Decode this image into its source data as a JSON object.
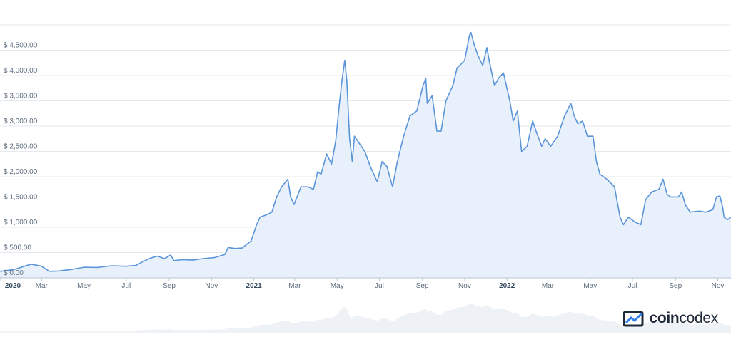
{
  "chart_data": {
    "type": "area",
    "title": "",
    "xlabel": "",
    "ylabel": "",
    "y_tick_labels": [
      "$ 0.00",
      "$ 500.00",
      "$ 1,000.00",
      "$ 1,500.00",
      "$ 2,000.00",
      "$ 2,500.00",
      "$ 3,000.00",
      "$ 3,500.00",
      "$ 4,000.00",
      "$ 4,500.00"
    ],
    "y_tick_values": [
      0,
      500,
      1000,
      1500,
      2000,
      2500,
      3000,
      3500,
      4000,
      4500
    ],
    "ylim": [
      0,
      5000
    ],
    "xlim": [
      "2020-01-01",
      "2022-11-20"
    ],
    "x_tick_labels": [
      {
        "label": "2020",
        "date": "2020-01-01",
        "major": true
      },
      {
        "label": "Mar",
        "date": "2020-03-01"
      },
      {
        "label": "May",
        "date": "2020-05-01"
      },
      {
        "label": "Jul",
        "date": "2020-07-01"
      },
      {
        "label": "Sep",
        "date": "2020-09-01"
      },
      {
        "label": "Nov",
        "date": "2020-11-01"
      },
      {
        "label": "2021",
        "date": "2021-01-01",
        "major": true
      },
      {
        "label": "Mar",
        "date": "2021-03-01"
      },
      {
        "label": "May",
        "date": "2021-05-01"
      },
      {
        "label": "Jul",
        "date": "2021-07-01"
      },
      {
        "label": "Sep",
        "date": "2021-09-01"
      },
      {
        "label": "Nov",
        "date": "2021-11-01"
      },
      {
        "label": "2022",
        "date": "2022-01-01",
        "major": true
      },
      {
        "label": "Mar",
        "date": "2022-03-01"
      },
      {
        "label": "May",
        "date": "2022-05-01"
      },
      {
        "label": "Jul",
        "date": "2022-07-01"
      },
      {
        "label": "Sep",
        "date": "2022-09-01"
      },
      {
        "label": "Nov",
        "date": "2022-11-01"
      }
    ],
    "grid": true,
    "legend": "none",
    "colors": {
      "line": "#5b95d9",
      "fill": "#e8f0fb",
      "grid": "#e6e9ef"
    },
    "series": [
      {
        "points": [
          [
            "2020-01-01",
            130
          ],
          [
            "2020-01-20",
            160
          ],
          [
            "2020-02-15",
            270
          ],
          [
            "2020-03-01",
            230
          ],
          [
            "2020-03-12",
            130
          ],
          [
            "2020-03-25",
            135
          ],
          [
            "2020-04-15",
            170
          ],
          [
            "2020-05-01",
            210
          ],
          [
            "2020-05-20",
            205
          ],
          [
            "2020-06-10",
            240
          ],
          [
            "2020-07-01",
            230
          ],
          [
            "2020-07-15",
            245
          ],
          [
            "2020-07-25",
            320
          ],
          [
            "2020-08-05",
            390
          ],
          [
            "2020-08-15",
            430
          ],
          [
            "2020-08-25",
            380
          ],
          [
            "2020-09-03",
            450
          ],
          [
            "2020-09-08",
            340
          ],
          [
            "2020-09-20",
            360
          ],
          [
            "2020-10-05",
            350
          ],
          [
            "2020-10-20",
            380
          ],
          [
            "2020-11-05",
            400
          ],
          [
            "2020-11-20",
            460
          ],
          [
            "2020-11-25",
            600
          ],
          [
            "2020-12-05",
            580
          ],
          [
            "2020-12-15",
            590
          ],
          [
            "2020-12-28",
            730
          ],
          [
            "2021-01-05",
            1050
          ],
          [
            "2021-01-10",
            1200
          ],
          [
            "2021-01-20",
            1250
          ],
          [
            "2021-01-27",
            1300
          ],
          [
            "2021-02-03",
            1600
          ],
          [
            "2021-02-10",
            1800
          ],
          [
            "2021-02-19",
            1950
          ],
          [
            "2021-02-23",
            1600
          ],
          [
            "2021-02-28",
            1450
          ],
          [
            "2021-03-10",
            1800
          ],
          [
            "2021-03-20",
            1800
          ],
          [
            "2021-03-28",
            1750
          ],
          [
            "2021-04-03",
            2100
          ],
          [
            "2021-04-08",
            2050
          ],
          [
            "2021-04-16",
            2450
          ],
          [
            "2021-04-23",
            2250
          ],
          [
            "2021-04-29",
            2700
          ],
          [
            "2021-05-04",
            3400
          ],
          [
            "2021-05-08",
            3900
          ],
          [
            "2021-05-12",
            4300
          ],
          [
            "2021-05-15",
            3900
          ],
          [
            "2021-05-19",
            2750
          ],
          [
            "2021-05-23",
            2300
          ],
          [
            "2021-05-26",
            2800
          ],
          [
            "2021-05-31",
            2700
          ],
          [
            "2021-06-10",
            2500
          ],
          [
            "2021-06-18",
            2200
          ],
          [
            "2021-06-28",
            1900
          ],
          [
            "2021-07-05",
            2300
          ],
          [
            "2021-07-12",
            2200
          ],
          [
            "2021-07-20",
            1800
          ],
          [
            "2021-07-27",
            2300
          ],
          [
            "2021-08-05",
            2800
          ],
          [
            "2021-08-14",
            3200
          ],
          [
            "2021-08-24",
            3300
          ],
          [
            "2021-09-02",
            3800
          ],
          [
            "2021-09-06",
            3950
          ],
          [
            "2021-09-08",
            3450
          ],
          [
            "2021-09-15",
            3600
          ],
          [
            "2021-09-22",
            2900
          ],
          [
            "2021-09-28",
            2900
          ],
          [
            "2021-10-05",
            3500
          ],
          [
            "2021-10-15",
            3800
          ],
          [
            "2021-10-21",
            4150
          ],
          [
            "2021-10-25",
            4200
          ],
          [
            "2021-11-01",
            4300
          ],
          [
            "2021-11-08",
            4800
          ],
          [
            "2021-11-10",
            4850
          ],
          [
            "2021-11-15",
            4600
          ],
          [
            "2021-11-20",
            4400
          ],
          [
            "2021-11-27",
            4200
          ],
          [
            "2021-12-03",
            4550
          ],
          [
            "2021-12-07",
            4250
          ],
          [
            "2021-12-14",
            3800
          ],
          [
            "2021-12-20",
            3950
          ],
          [
            "2021-12-27",
            4050
          ],
          [
            "2022-01-05",
            3500
          ],
          [
            "2022-01-10",
            3100
          ],
          [
            "2022-01-16",
            3300
          ],
          [
            "2022-01-22",
            2500
          ],
          [
            "2022-01-30",
            2600
          ],
          [
            "2022-02-07",
            3100
          ],
          [
            "2022-02-12",
            2900
          ],
          [
            "2022-02-20",
            2600
          ],
          [
            "2022-02-25",
            2750
          ],
          [
            "2022-03-05",
            2600
          ],
          [
            "2022-03-15",
            2800
          ],
          [
            "2022-03-25",
            3200
          ],
          [
            "2022-04-03",
            3450
          ],
          [
            "2022-04-08",
            3200
          ],
          [
            "2022-04-13",
            3050
          ],
          [
            "2022-04-20",
            3100
          ],
          [
            "2022-04-27",
            2800
          ],
          [
            "2022-05-05",
            2800
          ],
          [
            "2022-05-10",
            2300
          ],
          [
            "2022-05-15",
            2050
          ],
          [
            "2022-05-25",
            1950
          ],
          [
            "2022-06-05",
            1800
          ],
          [
            "2022-06-13",
            1200
          ],
          [
            "2022-06-18",
            1050
          ],
          [
            "2022-06-25",
            1200
          ],
          [
            "2022-07-05",
            1100
          ],
          [
            "2022-07-13",
            1050
          ],
          [
            "2022-07-20",
            1550
          ],
          [
            "2022-07-29",
            1700
          ],
          [
            "2022-08-08",
            1750
          ],
          [
            "2022-08-14",
            1950
          ],
          [
            "2022-08-20",
            1650
          ],
          [
            "2022-08-25",
            1600
          ],
          [
            "2022-09-05",
            1600
          ],
          [
            "2022-09-10",
            1700
          ],
          [
            "2022-09-15",
            1450
          ],
          [
            "2022-09-22",
            1300
          ],
          [
            "2022-10-05",
            1320
          ],
          [
            "2022-10-15",
            1300
          ],
          [
            "2022-10-25",
            1350
          ],
          [
            "2022-10-30",
            1600
          ],
          [
            "2022-11-04",
            1620
          ],
          [
            "2022-11-08",
            1400
          ],
          [
            "2022-11-10",
            1200
          ],
          [
            "2022-11-15",
            1150
          ],
          [
            "2022-11-20",
            1200
          ]
        ]
      }
    ]
  },
  "brand": {
    "name_bold": "coin",
    "name_light": "codex",
    "colors": {
      "icon_dark": "#1e2a3a",
      "icon_blue": "#2f80ed"
    }
  }
}
